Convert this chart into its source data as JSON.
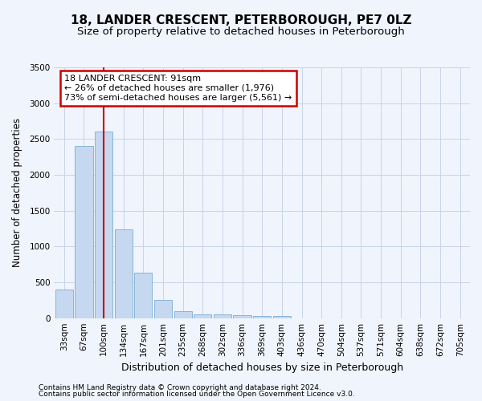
{
  "title": "18, LANDER CRESCENT, PETERBOROUGH, PE7 0LZ",
  "subtitle": "Size of property relative to detached houses in Peterborough",
  "xlabel": "Distribution of detached houses by size in Peterborough",
  "ylabel": "Number of detached properties",
  "footnote1": "Contains HM Land Registry data © Crown copyright and database right 2024.",
  "footnote2": "Contains public sector information licensed under the Open Government Licence v3.0.",
  "categories": [
    "33sqm",
    "67sqm",
    "100sqm",
    "134sqm",
    "167sqm",
    "201sqm",
    "235sqm",
    "268sqm",
    "302sqm",
    "336sqm",
    "369sqm",
    "403sqm",
    "436sqm",
    "470sqm",
    "504sqm",
    "537sqm",
    "571sqm",
    "604sqm",
    "638sqm",
    "672sqm",
    "705sqm"
  ],
  "values": [
    400,
    2400,
    2600,
    1240,
    640,
    255,
    95,
    55,
    50,
    40,
    30,
    25,
    0,
    0,
    0,
    0,
    0,
    0,
    0,
    0,
    0
  ],
  "bar_color": "#c5d8f0",
  "bar_edge_color": "#7aadd4",
  "grid_color": "#c8d4e8",
  "background_color": "#f0f4fc",
  "annotation_text": "18 LANDER CRESCENT: 91sqm\n← 26% of detached houses are smaller (1,976)\n73% of semi-detached houses are larger (5,561) →",
  "annotation_box_facecolor": "#ffffff",
  "annotation_box_edgecolor": "#cc0000",
  "red_line_x": 2.0,
  "ylim": [
    0,
    3500
  ],
  "yticks": [
    0,
    500,
    1000,
    1500,
    2000,
    2500,
    3000,
    3500
  ],
  "title_fontsize": 11,
  "subtitle_fontsize": 9.5,
  "xlabel_fontsize": 9,
  "ylabel_fontsize": 8.5,
  "tick_fontsize": 7.5,
  "annot_fontsize": 8,
  "footnote_fontsize": 6.5
}
